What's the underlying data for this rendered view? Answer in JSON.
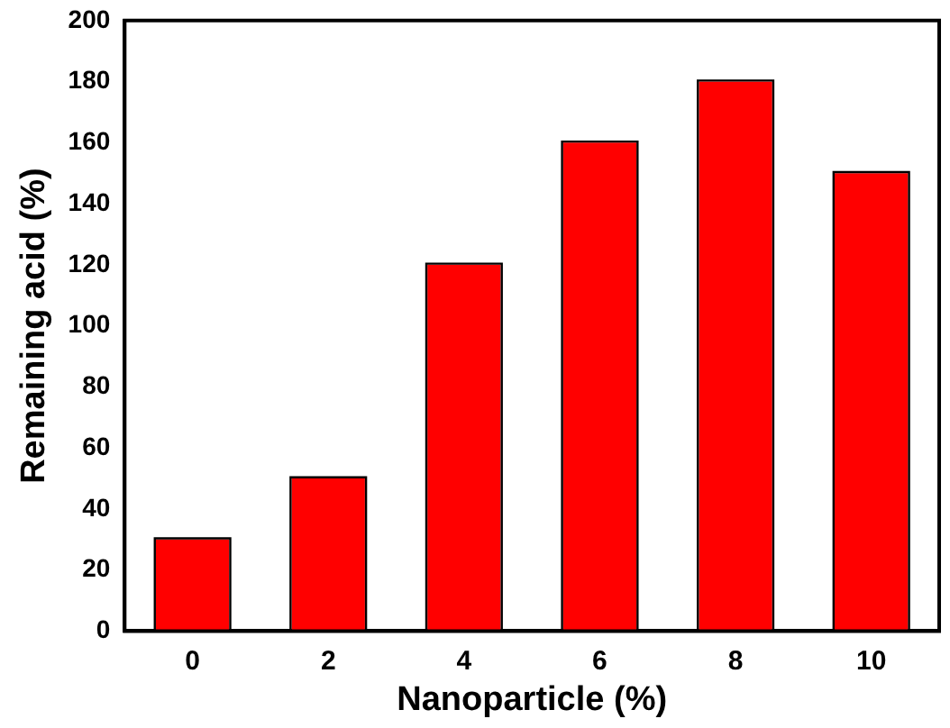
{
  "chart_data": {
    "type": "bar",
    "xlabel": "Nanoparticle (%)",
    "ylabel": "Remaining acid (%)",
    "categories": [
      "0",
      "2",
      "4",
      "6",
      "8",
      "10"
    ],
    "values": [
      30,
      50,
      120,
      160,
      180,
      150
    ],
    "color": "#ff0000",
    "ylim": [
      0,
      200
    ],
    "yticks": [
      0,
      20,
      40,
      60,
      80,
      100,
      120,
      140,
      160,
      180,
      200
    ],
    "grid": false,
    "legend": false
  }
}
